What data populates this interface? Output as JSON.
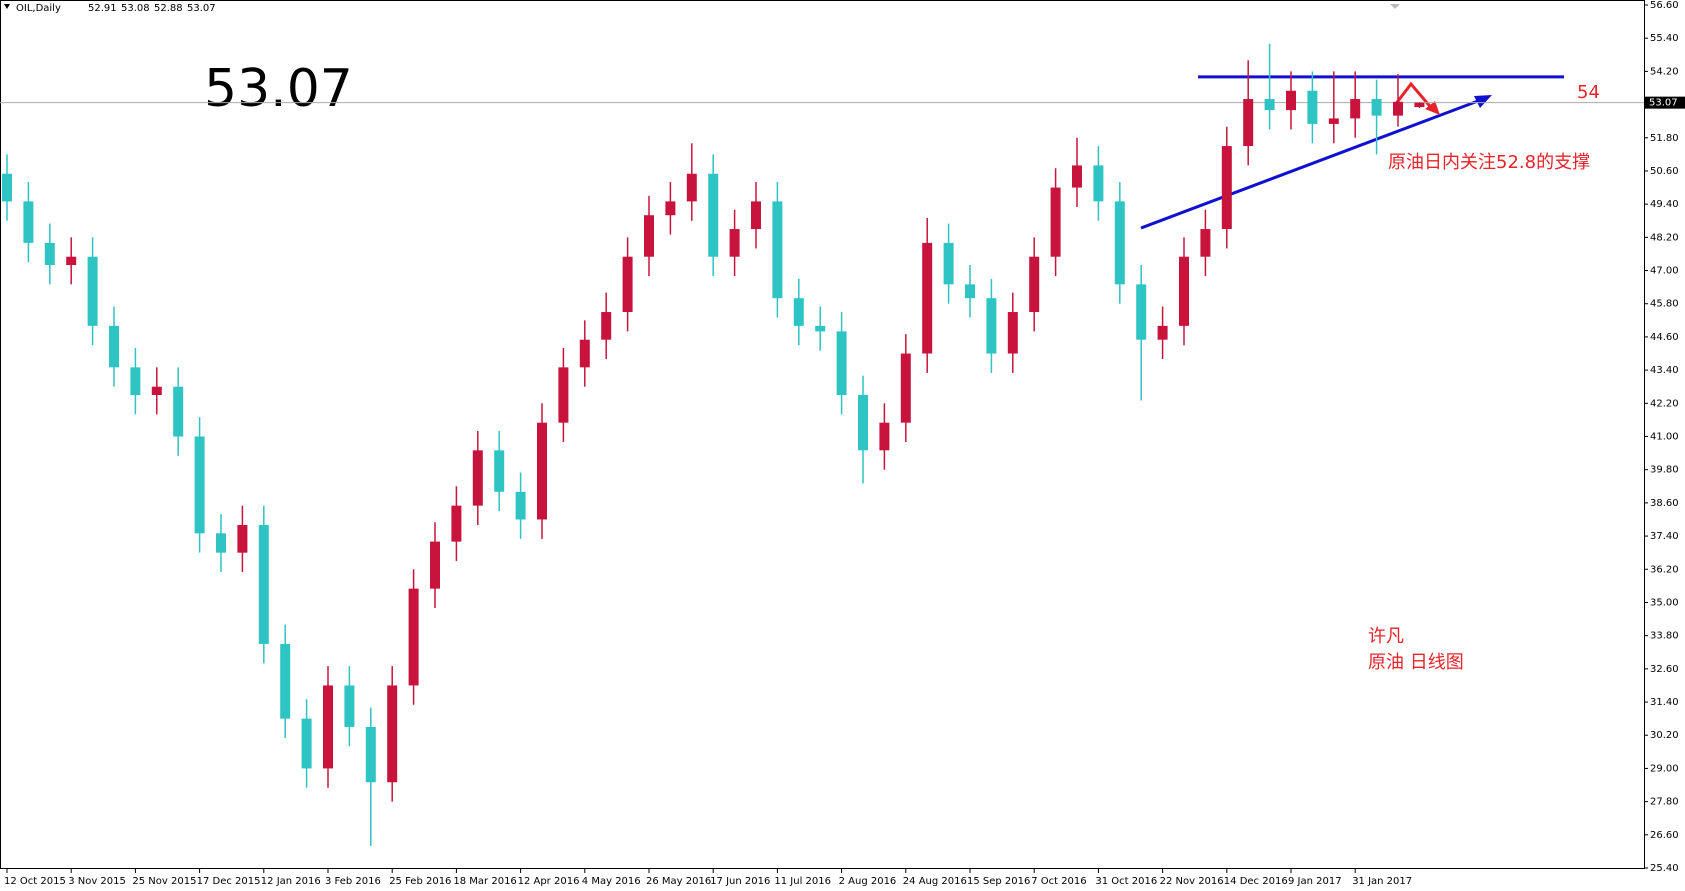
{
  "chart_data": {
    "type": "candlestick",
    "symbol": "OIL,Daily",
    "categories": [
      "12 Oct 2015",
      null,
      null,
      "3 Nov 2015",
      null,
      null,
      "25 Nov 2015",
      null,
      null,
      "17 Dec 2015",
      null,
      null,
      "12 Jan 2016",
      null,
      null,
      "3 Feb 2016",
      null,
      null,
      "25 Feb 2016",
      null,
      null,
      "18 Mar 2016",
      null,
      null,
      "12 Apr 2016",
      null,
      null,
      "4 May 2016",
      null,
      null,
      "26 May 2016",
      null,
      null,
      "17 Jun 2016",
      null,
      null,
      "11 Jul 2016",
      null,
      null,
      "2 Aug 2016",
      null,
      null,
      "24 Aug 2016",
      null,
      null,
      "15 Sep 2016",
      null,
      null,
      "7 Oct 2016",
      null,
      null,
      "31 Oct 2016",
      null,
      null,
      "22 Nov 2016",
      null,
      null,
      "14 Dec 2016",
      null,
      null,
      "9 Jan 2017",
      null,
      null,
      "31 Jan 2017",
      null,
      null,
      null
    ],
    "open": [
      50.5,
      49.5,
      48.0,
      47.2,
      47.5,
      45.0,
      43.5,
      42.5,
      42.8,
      41.0,
      37.5,
      36.8,
      37.8,
      33.5,
      30.8,
      29.0,
      32.0,
      30.5,
      28.5,
      32.0,
      35.5,
      37.2,
      38.5,
      40.5,
      39.0,
      38.0,
      41.5,
      43.5,
      44.5,
      45.5,
      47.5,
      49.0,
      49.5,
      50.5,
      47.5,
      48.5,
      49.5,
      46.0,
      45.0,
      44.8,
      42.5,
      40.5,
      41.5,
      44.0,
      48.0,
      46.5,
      46.0,
      44.0,
      45.5,
      47.5,
      50.0,
      50.8,
      49.5,
      46.5,
      44.5,
      45.0,
      47.5,
      48.5,
      51.5,
      53.2,
      52.8,
      53.5,
      52.3,
      52.5,
      53.2,
      52.6,
      52.91
    ],
    "high": [
      51.2,
      50.2,
      48.7,
      48.2,
      48.2,
      45.7,
      44.2,
      43.5,
      43.5,
      41.7,
      38.2,
      38.5,
      38.5,
      34.2,
      31.5,
      32.7,
      32.7,
      31.2,
      32.7,
      36.2,
      37.9,
      39.2,
      41.2,
      41.2,
      39.7,
      42.2,
      44.2,
      45.2,
      46.2,
      48.2,
      49.7,
      50.2,
      51.6,
      51.2,
      49.2,
      50.2,
      50.2,
      46.7,
      45.7,
      45.5,
      43.2,
      42.2,
      44.7,
      48.9,
      48.7,
      47.2,
      46.7,
      46.2,
      48.2,
      50.7,
      51.8,
      51.5,
      50.2,
      47.2,
      45.7,
      48.2,
      49.2,
      52.2,
      54.6,
      55.2,
      54.2,
      54.2,
      54.2,
      54.2,
      53.9,
      54.1,
      53.08
    ],
    "low": [
      48.8,
      47.3,
      46.5,
      46.5,
      44.3,
      42.8,
      41.8,
      41.8,
      40.3,
      36.8,
      36.1,
      36.1,
      32.8,
      30.1,
      28.3,
      28.3,
      29.8,
      26.2,
      27.8,
      31.3,
      34.8,
      36.5,
      37.8,
      38.3,
      37.3,
      37.3,
      40.8,
      42.8,
      43.8,
      44.8,
      46.8,
      48.3,
      48.8,
      46.8,
      46.8,
      47.8,
      45.3,
      44.3,
      44.1,
      41.8,
      39.3,
      39.8,
      40.8,
      43.3,
      45.8,
      45.3,
      43.3,
      43.3,
      44.8,
      46.8,
      49.3,
      48.8,
      45.8,
      42.3,
      43.8,
      44.3,
      46.8,
      47.8,
      50.8,
      52.1,
      52.1,
      51.6,
      51.6,
      51.8,
      51.2,
      52.2,
      52.88
    ],
    "close": [
      49.5,
      48.0,
      47.2,
      47.5,
      45.0,
      43.5,
      42.5,
      42.8,
      41.0,
      37.5,
      36.8,
      37.8,
      33.5,
      30.8,
      29.0,
      32.0,
      30.5,
      28.5,
      32.0,
      35.5,
      37.2,
      38.5,
      40.5,
      39.0,
      38.0,
      41.5,
      43.5,
      44.5,
      45.5,
      47.5,
      49.0,
      49.5,
      50.5,
      47.5,
      48.5,
      49.5,
      46.0,
      45.0,
      44.8,
      42.5,
      40.5,
      41.5,
      44.0,
      48.0,
      46.5,
      46.0,
      44.0,
      45.5,
      47.5,
      50.0,
      50.8,
      49.5,
      46.5,
      44.5,
      45.0,
      47.5,
      48.5,
      51.5,
      53.2,
      52.8,
      53.5,
      52.3,
      52.5,
      53.2,
      52.6,
      53.1,
      53.07
    ],
    "up_color": "#c8143c",
    "down_color": "#2ec4c4",
    "ylim": [
      25.4,
      56.6
    ],
    "yticks": [
      {
        "value": 56.6,
        "label": "56.60"
      },
      {
        "value": 55.4,
        "label": "55.40"
      },
      {
        "value": 54.2,
        "label": "54.20"
      },
      {
        "value": 53.0,
        "label": "53.00"
      },
      {
        "value": 51.8,
        "label": "51.80"
      },
      {
        "value": 50.6,
        "label": "50.60"
      },
      {
        "value": 49.4,
        "label": "49.40"
      },
      {
        "value": 48.2,
        "label": "48.20"
      },
      {
        "value": 47.0,
        "label": "47.00"
      },
      {
        "value": 45.8,
        "label": "45.80"
      },
      {
        "value": 44.6,
        "label": "44.60"
      },
      {
        "value": 43.4,
        "label": "43.40"
      },
      {
        "value": 42.2,
        "label": "42.20"
      },
      {
        "value": 41.0,
        "label": "41.00"
      },
      {
        "value": 39.8,
        "label": "39.80"
      },
      {
        "value": 38.6,
        "label": "38.60"
      },
      {
        "value": 37.4,
        "label": "37.40"
      },
      {
        "value": 36.2,
        "label": "36.20"
      },
      {
        "value": 35.0,
        "label": "35.00"
      },
      {
        "value": 33.8,
        "label": "33.80"
      },
      {
        "value": 32.6,
        "label": "32.60"
      },
      {
        "value": 31.4,
        "label": "31.40"
      },
      {
        "value": 30.2,
        "label": "30.20"
      },
      {
        "value": 29.0,
        "label": "29.00"
      },
      {
        "value": 27.8,
        "label": "27.80"
      },
      {
        "value": 26.6,
        "label": "26.60"
      },
      {
        "value": 25.4,
        "label": "25.40"
      }
    ],
    "last_price": 53.07,
    "resistance": 54,
    "annotation": "原油日内关注52.8的支撑",
    "author": "许凡",
    "caption": "原油 日线图"
  }
}
